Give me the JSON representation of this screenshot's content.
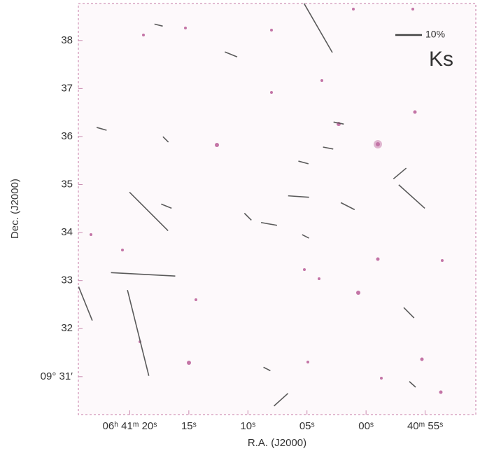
{
  "chart_data": {
    "type": "vector",
    "band_label": "Ks",
    "xlabel": "R.A. (J2000)",
    "ylabel": "Dec. (J2000)",
    "xlim": [
      24.35,
      -9.29
    ],
    "ylim": [
      30.21,
      38.77
    ],
    "xticks": [
      {
        "value": 20,
        "label": "06ʰ 41ᵐ 20ˢ"
      },
      {
        "value": 15,
        "label": "15ˢ"
      },
      {
        "value": 10,
        "label": "10ˢ"
      },
      {
        "value": 5,
        "label": "05ˢ"
      },
      {
        "value": 0,
        "label": "00ˢ"
      },
      {
        "value": -5,
        "label": "40ᵐ 55ˢ"
      }
    ],
    "yticks": [
      38,
      37,
      36,
      35,
      34,
      33,
      32,
      {
        "value": 31,
        "label": "09° 31′"
      }
    ],
    "scale_bar": {
      "value": 10,
      "label": "10%"
    },
    "color": "#5a5a5a",
    "vectors": {
      "ra": [
        4.05,
        18.39,
        18.87,
        19.29,
        23.75,
        -3.87,
        -2.86,
        7.2,
        -3.63,
        5.71,
        1.55,
        8.21,
        11.43,
        22.38,
        2.32,
        5.3,
        16.9,
        10.0,
        -3.93,
        17.56,
        3.21,
        16.96,
        5.12,
        8.39
      ],
      "dec": [
        38.26,
        34.44,
        33.13,
        31.91,
        32.52,
        34.75,
        35.23,
        30.52,
        32.33,
        34.75,
        34.55,
        34.18,
        37.71,
        36.16,
        36.28,
        35.46,
        34.55,
        34.33,
        30.84,
        38.32,
        35.76,
        35.94,
        33.92,
        31.16
      ],
      "p": [
        21.3,
        20.5,
        24.2,
        33.2,
        13.7,
        13.2,
        6.3,
        7.1,
        5.5,
        7.9,
        5.8,
        6.1,
        5.0,
        3.9,
        3.9,
        3.9,
        4.2,
        3.7,
        3.2,
        3.2,
        3.9,
        2.9,
        2.9,
        2.9
      ],
      "pa": [
        30,
        45,
        87,
        14,
        22,
        48,
        130,
        132,
        45,
        86,
        63,
        80,
        68,
        74,
        79,
        75,
        68,
        45,
        48,
        76,
        79,
        45,
        63,
        63
      ]
    }
  }
}
